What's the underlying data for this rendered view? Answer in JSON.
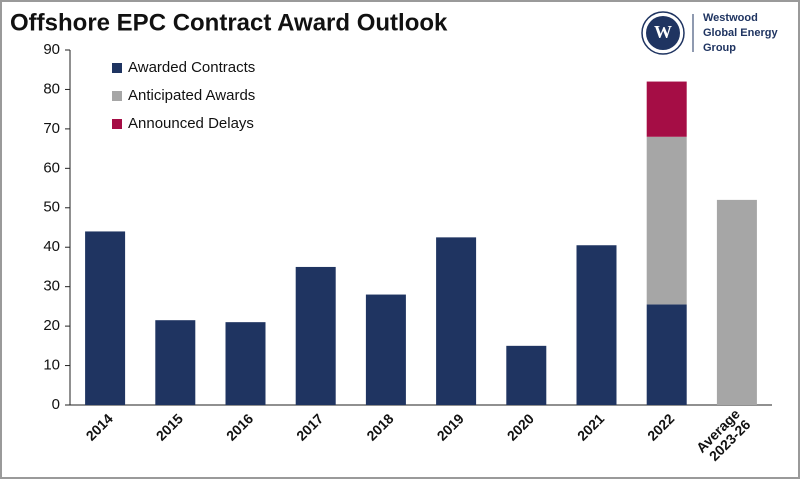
{
  "chart_data": {
    "type": "stacked-bar",
    "title": "Offshore EPC Contract Award Outlook",
    "categories": [
      "2014",
      "2015",
      "2016",
      "2017",
      "2018",
      "2019",
      "2020",
      "2021",
      "2022",
      "Average 2023-26"
    ],
    "series": [
      {
        "name": "Awarded Contracts",
        "color": "#1f3461",
        "values": [
          44,
          21.5,
          21,
          35,
          28,
          42.5,
          15,
          40.5,
          25.5,
          null
        ]
      },
      {
        "name": "Anticipated Awards",
        "color": "#a6a6a6",
        "values": [
          null,
          null,
          null,
          null,
          null,
          null,
          null,
          null,
          42.5,
          52
        ]
      },
      {
        "name": "Announced Delays",
        "color": "#a50d45",
        "values": [
          null,
          null,
          null,
          null,
          null,
          null,
          null,
          null,
          14,
          null
        ]
      }
    ],
    "ylim": [
      0,
      90
    ],
    "yticks": [
      0,
      10,
      20,
      30,
      40,
      50,
      60,
      70,
      80,
      90
    ],
    "grid": false,
    "legend": "top-left"
  },
  "logo": {
    "mark": "W",
    "lines": [
      "Westwood",
      "Global Energy",
      "Group"
    ]
  }
}
